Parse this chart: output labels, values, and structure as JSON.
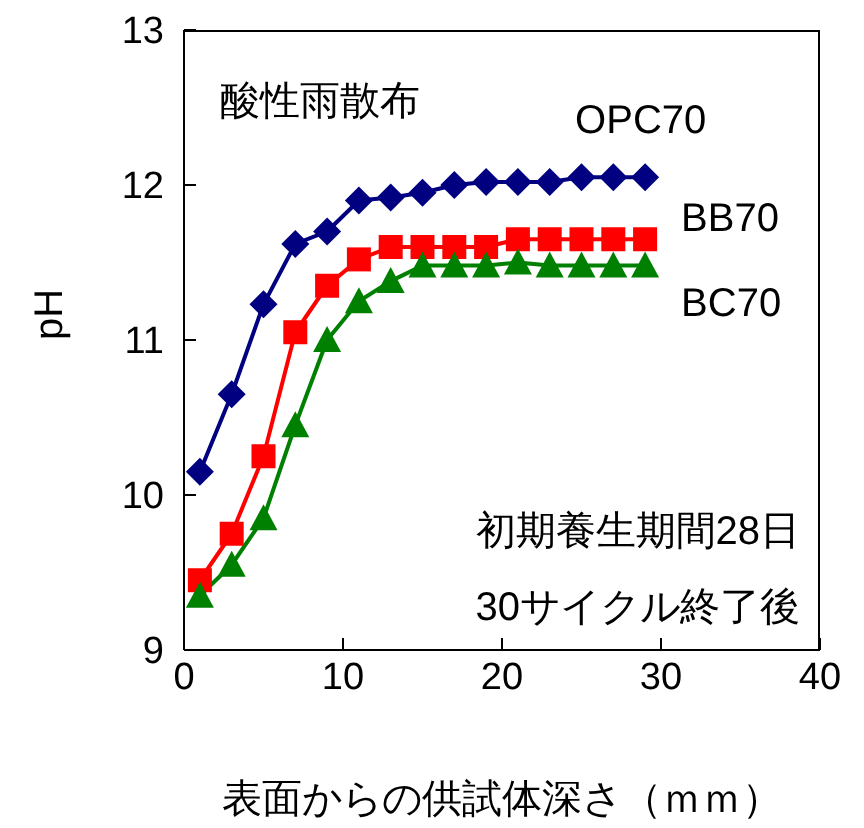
{
  "chart_data": {
    "type": "line",
    "xlabel": "表面からの供試体深さ（ｍｍ）",
    "ylabel": "pH",
    "x": [
      1,
      3,
      5,
      7,
      9,
      11,
      13,
      15,
      17,
      19,
      21,
      23,
      25,
      27,
      29
    ],
    "series": [
      {
        "name": "OPC70",
        "color": "#000080",
        "marker": "diamond",
        "values": [
          10.15,
          10.65,
          11.23,
          11.62,
          11.7,
          11.9,
          11.92,
          11.95,
          12.0,
          12.02,
          12.02,
          12.02,
          12.05,
          12.05,
          12.05
        ]
      },
      {
        "name": "BB70",
        "color": "#ff0000",
        "marker": "square",
        "values": [
          9.45,
          9.75,
          10.25,
          11.05,
          11.35,
          11.52,
          11.6,
          11.6,
          11.6,
          11.6,
          11.65,
          11.65,
          11.65,
          11.65,
          11.65
        ]
      },
      {
        "name": "BC70",
        "color": "#008000",
        "marker": "triangle",
        "values": [
          9.35,
          9.55,
          9.85,
          10.45,
          11.0,
          11.25,
          11.38,
          11.48,
          11.48,
          11.48,
          11.5,
          11.48,
          11.48,
          11.48,
          11.48
        ]
      }
    ],
    "xlim": [
      0,
      40
    ],
    "xticks": [
      0,
      10,
      20,
      30,
      40
    ],
    "ylim": [
      9,
      13
    ],
    "yticks": [
      9,
      10,
      11,
      12,
      13
    ],
    "annotations": [
      "酸性雨散布",
      "初期養生期間28日",
      "30サイクル終了後"
    ],
    "grid": false,
    "legend": false
  }
}
